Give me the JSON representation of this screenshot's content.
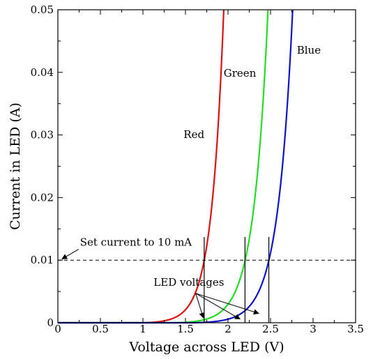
{
  "chart_data": {
    "type": "line",
    "title": "",
    "xlabel": "Voltage across LED (V)",
    "ylabel": "Current in LED (A)",
    "xlim": [
      0,
      3.5
    ],
    "ylim": [
      0,
      0.05
    ],
    "x_ticks": [
      "0",
      "0.5",
      "1",
      "1.5",
      "2",
      "2.5",
      "3",
      "3.5"
    ],
    "y_ticks": [
      "0",
      "0.01",
      "0.02",
      "0.03",
      "0.04",
      "0.05"
    ],
    "grid": false,
    "legend": "none",
    "series": [
      {
        "name": "Red",
        "color": "#dd1111",
        "threshold_voltage": 1.72,
        "current_at_threshold": 0.01,
        "points": [
          [
            1.0,
            0.0
          ],
          [
            1.3,
            0.0003
          ],
          [
            1.5,
            0.0022
          ],
          [
            1.6,
            0.0045
          ],
          [
            1.72,
            0.01
          ],
          [
            1.8,
            0.017
          ],
          [
            1.9,
            0.036
          ],
          [
            1.95,
            0.05
          ]
        ]
      },
      {
        "name": "Green",
        "color": "#22dd22",
        "threshold_voltage": 2.2,
        "current_at_threshold": 0.01,
        "points": [
          [
            1.4,
            0.0
          ],
          [
            1.7,
            0.0004
          ],
          [
            1.9,
            0.0025
          ],
          [
            2.0,
            0.0042
          ],
          [
            2.2,
            0.01
          ],
          [
            2.3,
            0.016
          ],
          [
            2.4,
            0.034
          ],
          [
            2.47,
            0.05
          ]
        ]
      },
      {
        "name": "Blue",
        "color": "#1111cc",
        "threshold_voltage": 2.48,
        "current_at_threshold": 0.01,
        "points": [
          [
            1.6,
            0.0
          ],
          [
            1.9,
            0.0003
          ],
          [
            2.1,
            0.0018
          ],
          [
            2.3,
            0.0052
          ],
          [
            2.48,
            0.01
          ],
          [
            2.6,
            0.02
          ],
          [
            2.7,
            0.037
          ],
          [
            2.76,
            0.05
          ]
        ]
      }
    ],
    "reference_line": {
      "y": 0.01,
      "style": "dashed",
      "label": "Set current to 10 mA",
      "label_at": [
        0.26,
        0.0123
      ],
      "arrow_to": [
        0.05,
        0.0102
      ]
    },
    "marker_lines": [
      {
        "x": 1.72,
        "y_from": 0,
        "y_to": 0.0137
      },
      {
        "x": 2.2,
        "y_from": 0,
        "y_to": 0.0137
      },
      {
        "x": 2.48,
        "y_from": 0,
        "y_to": 0.0137
      }
    ],
    "annotations": [
      {
        "text": "Red",
        "at": [
          1.6,
          0.0295
        ],
        "anchor": "middle"
      },
      {
        "text": "Green",
        "at": [
          2.14,
          0.0393
        ],
        "anchor": "middle"
      },
      {
        "text": "Blue",
        "at": [
          2.95,
          0.043
        ],
        "anchor": "middle"
      },
      {
        "text": "LED voltages",
        "at": [
          1.54,
          0.0059
        ],
        "anchor": "middle",
        "arrow_from": [
          1.62,
          0.0047
        ],
        "arrows_to": [
          [
            1.71,
            0.0008
          ],
          [
            2.14,
            0.0006
          ],
          [
            2.36,
            0.0015
          ]
        ]
      }
    ]
  }
}
